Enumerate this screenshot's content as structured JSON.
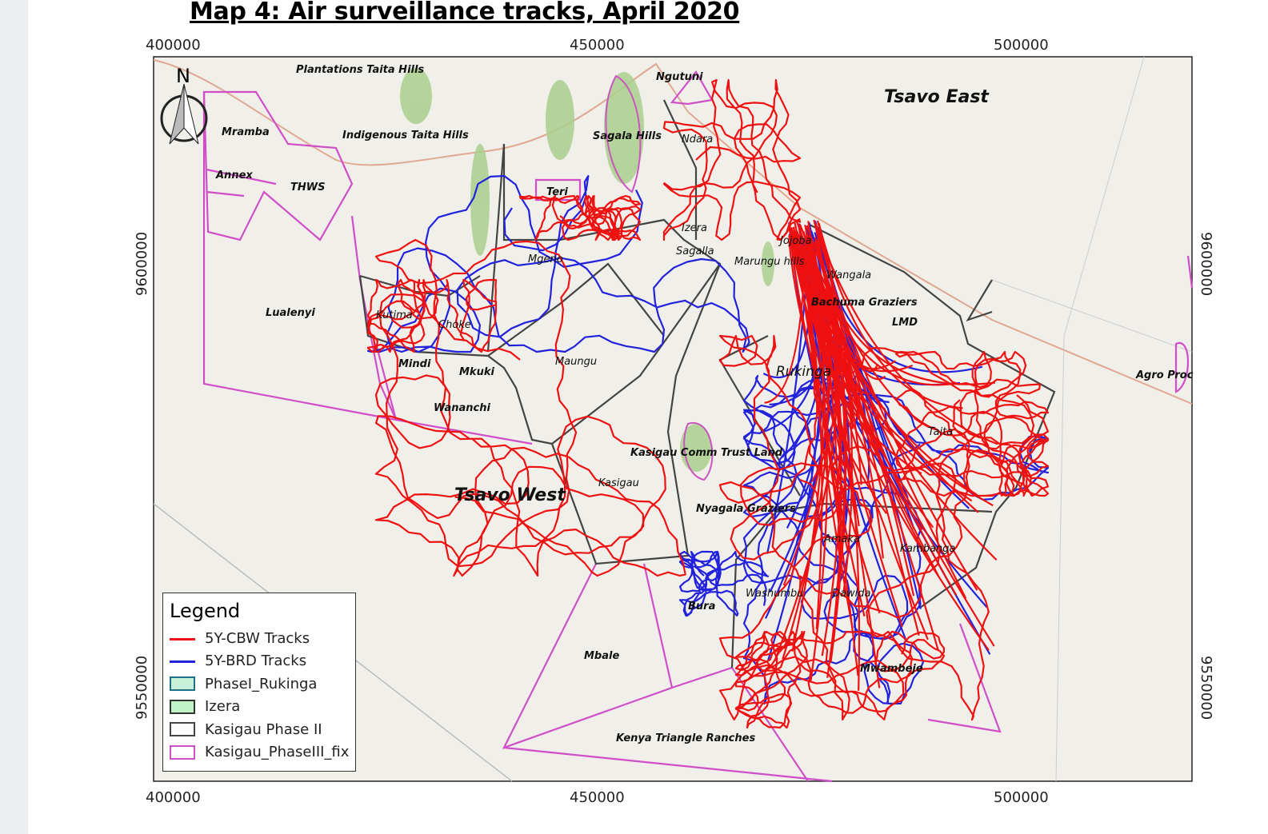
{
  "title": "Map 4: Air surveillance tracks, April 2020",
  "axes": {
    "x_ticks": [
      "400000",
      "450000",
      "500000"
    ],
    "y_ticks": [
      "9600000",
      "9550000"
    ]
  },
  "north_arrow": {
    "label": "N",
    "icon": "north-arrow-icon"
  },
  "labels": {
    "plantations": "Plantations Taita Hills",
    "indigenous": "Indigenous Taita Hills",
    "mramba": "Mramba",
    "annex": "Annex",
    "thws": "THWS",
    "lualenyi": "Lualenyi",
    "sagala_hills": "Sagala Hills",
    "ngutuni": "Ngutuni",
    "ndara": "Ndara",
    "teri": "Teri",
    "izera": "Izera",
    "sagalla": "Sagalla",
    "mgeno": "Mgeno",
    "kutima": "Kutima",
    "choke": "Choke",
    "mindi": "Mindi",
    "mkuki": "Mkuki",
    "wananchi": "Wananchi",
    "maungu": "Maungu",
    "jojoba": "Jojoba",
    "marungu": "Marungu hills",
    "wangala": "Wangala",
    "bachuma": "Bachuma Graziers",
    "lmd": "LMD",
    "rukinga": "Rukinga",
    "taita": "Taita",
    "kasigau_trust": "Kasigau Comm Trust Land",
    "kasigau": "Kasigau",
    "nyagala": "Nyagala Graziers",
    "amaka": "Amaka",
    "kambanga": "Kambanga",
    "washumbu": "Washumbu",
    "dawida": "Dawida",
    "bura": "Bura",
    "mbale": "Mbale",
    "mwambeje": "Mwambeje",
    "kenya_triangle": "Kenya Triangle Ranches",
    "tsavo_west": "Tsavo West",
    "tsavo_east": "Tsavo East",
    "agro": "Agro Proc"
  },
  "legend": {
    "title": "Legend",
    "items": [
      {
        "label": "5Y-CBW Tracks",
        "color": "#ee1111",
        "type": "line"
      },
      {
        "label": "5Y-BRD Tracks",
        "color": "#2222dd",
        "type": "line"
      },
      {
        "label": "PhaseI_Rukinga",
        "color": "#1f6f8b",
        "fill": "#c8f0d8",
        "type": "poly"
      },
      {
        "label": "Izera",
        "color": "#333333",
        "fill": "#bff2c4",
        "type": "poly"
      },
      {
        "label": "Kasigau Phase II",
        "color": "#444444",
        "fill": "#ffffff",
        "type": "poly"
      },
      {
        "label": "Kasigau_PhaseIII_fix",
        "color": "#d04fc8",
        "fill": "#ffffff",
        "type": "poly"
      }
    ]
  }
}
